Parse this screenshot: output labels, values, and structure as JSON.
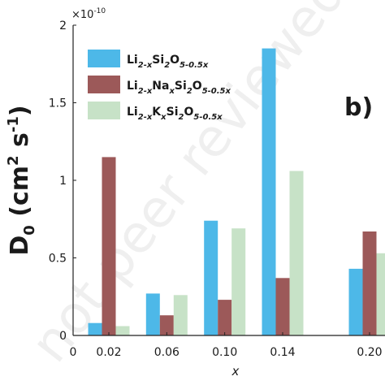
{
  "chart_data": {
    "type": "bar",
    "panel_label": "b)",
    "xlabel": "x",
    "ylabel_main": "D",
    "ylabel_sub": "0",
    "ylabel_unit": "(cm",
    "ylabel_unit_sup": "2",
    "ylabel_unit2": "s",
    "ylabel_unit2_sup": "-1",
    "ylabel_close": ")",
    "multiplier_base": "×10",
    "multiplier_exp": "-10",
    "ylim": [
      0,
      2
    ],
    "yticks": [
      "0",
      "0.5",
      "1",
      "1.5",
      "2"
    ],
    "y_tick_values": [
      0,
      0.5,
      1,
      1.5,
      2
    ],
    "x_zero_label": "0",
    "categories": [
      "0.02",
      "0.06",
      "0.10",
      "0.14",
      "0.20"
    ],
    "category_values": [
      0.02,
      0.06,
      0.1,
      0.14,
      0.2
    ],
    "series": [
      {
        "legend": [
          "Li",
          "2-x",
          "Si",
          "2",
          "O",
          "5-0.5x"
        ],
        "color": "#4db8e8",
        "values": [
          0.08,
          0.27,
          0.74,
          1.85,
          0.43
        ]
      },
      {
        "legend": [
          "Li",
          "2-x",
          "Na",
          "x",
          "Si",
          "2",
          "O",
          "5-0.5x"
        ],
        "color": "#9c5959",
        "values": [
          1.15,
          0.13,
          0.23,
          0.37,
          0.67
        ]
      },
      {
        "legend": [
          "Li",
          "2-x",
          "K",
          "x",
          "Si",
          "2",
          "O",
          "5-0.5x"
        ],
        "color": "#c7e2c7",
        "values": [
          0.06,
          0.26,
          0.69,
          1.06,
          0.53
        ]
      }
    ],
    "grid": false,
    "legend_position": "top-left"
  },
  "watermark": "not peer reviewed"
}
